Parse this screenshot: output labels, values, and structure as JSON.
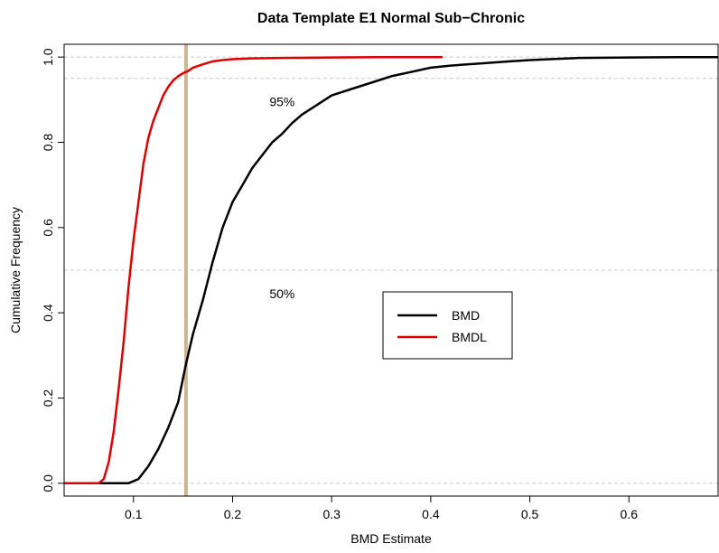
{
  "chart_data": {
    "type": "line",
    "title": "Data Template E1 Normal Sub−Chronic",
    "xlabel": "BMD Estimate",
    "ylabel": "Cumulative Frequency",
    "xlim": [
      0.03,
      0.69
    ],
    "ylim": [
      -0.03,
      1.03
    ],
    "xticks": [
      0.1,
      0.2,
      0.3,
      0.4,
      0.5,
      0.6
    ],
    "xtick_labels": [
      "0.1",
      "0.2",
      "0.3",
      "0.4",
      "0.5",
      "0.6"
    ],
    "yticks": [
      0.0,
      0.2,
      0.4,
      0.6,
      0.8,
      1.0
    ],
    "ytick_labels": [
      "0.0",
      "0.2",
      "0.4",
      "0.6",
      "0.8",
      "1.0"
    ],
    "grid": false,
    "reference_lines": {
      "horizontal": [
        0.0,
        0.5,
        0.95,
        1.0
      ],
      "vertical": [
        0.153
      ]
    },
    "annotations": [
      {
        "text": "95%",
        "x": 0.25,
        "y": 0.895
      },
      {
        "text": "50%",
        "x": 0.25,
        "y": 0.445
      }
    ],
    "legend": {
      "placement": "center-right",
      "entries": [
        {
          "label": "BMD",
          "color": "#000000"
        },
        {
          "label": "BMDL",
          "color": "#dd0000"
        }
      ]
    },
    "series": [
      {
        "name": "BMD",
        "color": "#000000",
        "x": [
          0.03,
          0.08,
          0.095,
          0.105,
          0.115,
          0.125,
          0.135,
          0.145,
          0.153,
          0.16,
          0.17,
          0.18,
          0.19,
          0.2,
          0.21,
          0.22,
          0.23,
          0.24,
          0.25,
          0.26,
          0.27,
          0.28,
          0.29,
          0.3,
          0.32,
          0.34,
          0.36,
          0.38,
          0.4,
          0.42,
          0.45,
          0.48,
          0.5,
          0.52,
          0.55,
          0.6,
          0.65,
          0.69
        ],
        "y": [
          0.0,
          0.0,
          0.0,
          0.01,
          0.04,
          0.08,
          0.13,
          0.19,
          0.28,
          0.35,
          0.43,
          0.52,
          0.6,
          0.66,
          0.7,
          0.74,
          0.77,
          0.8,
          0.82,
          0.845,
          0.865,
          0.88,
          0.895,
          0.91,
          0.925,
          0.94,
          0.955,
          0.965,
          0.975,
          0.98,
          0.985,
          0.99,
          0.993,
          0.995,
          0.998,
          0.999,
          1.0,
          1.0
        ]
      },
      {
        "name": "BMDL",
        "color": "#dd0000",
        "x": [
          0.03,
          0.065,
          0.07,
          0.075,
          0.08,
          0.085,
          0.09,
          0.095,
          0.1,
          0.105,
          0.11,
          0.115,
          0.12,
          0.125,
          0.13,
          0.135,
          0.14,
          0.145,
          0.15,
          0.155,
          0.16,
          0.17,
          0.18,
          0.19,
          0.2,
          0.22,
          0.25,
          0.3,
          0.35,
          0.412
        ],
        "y": [
          0.0,
          0.0,
          0.01,
          0.05,
          0.12,
          0.22,
          0.33,
          0.46,
          0.57,
          0.66,
          0.75,
          0.81,
          0.85,
          0.88,
          0.91,
          0.93,
          0.945,
          0.955,
          0.962,
          0.967,
          0.975,
          0.983,
          0.99,
          0.993,
          0.995,
          0.997,
          0.998,
          0.999,
          1.0,
          1.0
        ]
      }
    ]
  }
}
